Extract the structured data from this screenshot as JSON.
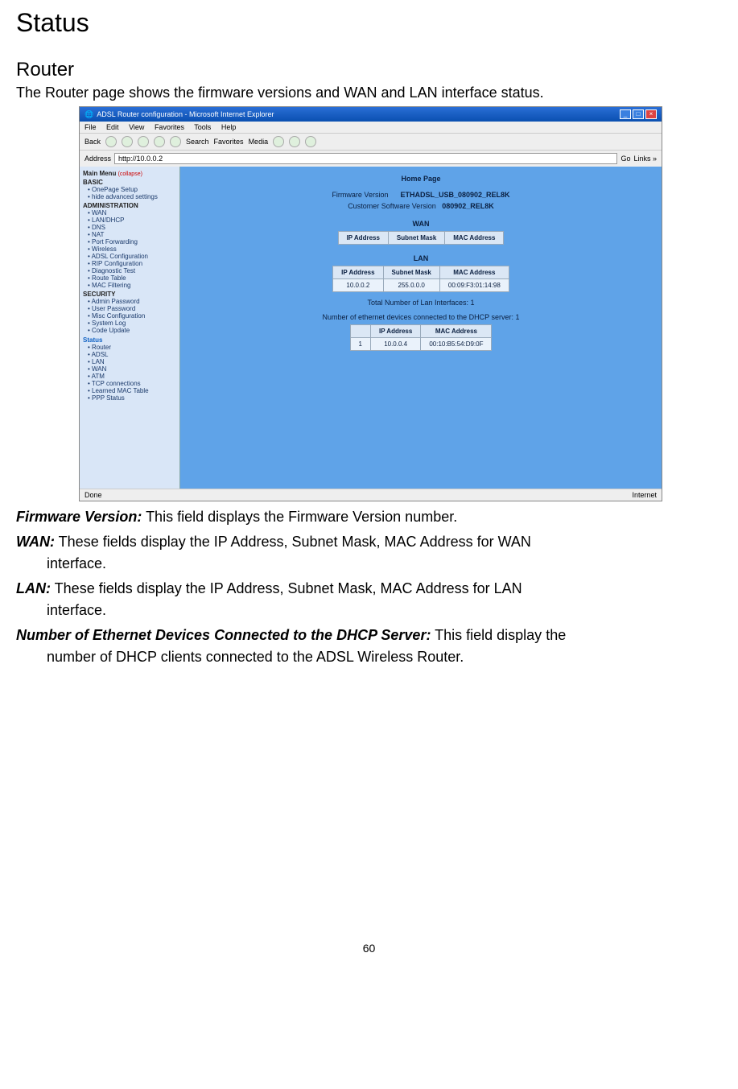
{
  "headings": {
    "status": "Status",
    "router": "Router",
    "intro": "The Router page shows the firmware versions and WAN and LAN interface status."
  },
  "screenshot": {
    "titlebar": "ADSL Router configuration - Microsoft Internet Explorer",
    "menubar": [
      "File",
      "Edit",
      "View",
      "Favorites",
      "Tools",
      "Help"
    ],
    "toolbar": [
      "Back",
      "",
      "",
      "",
      "Search",
      "Favorites",
      "Media",
      "",
      "",
      ""
    ],
    "address_label": "Address",
    "address_value": "http://10.0.0.2",
    "go_label": "Go",
    "links_label": "Links »",
    "sidebar": {
      "menu_title": "Main Menu",
      "collapse": "(collapse)",
      "basic": {
        "heading": "BASIC",
        "items": [
          "OnePage Setup",
          "hide advanced settings"
        ]
      },
      "administration": {
        "heading": "ADMINISTRATION",
        "items": [
          "WAN",
          "LAN/DHCP",
          "DNS",
          "NAT",
          "Port Forwarding",
          "Wireless",
          "ADSL Configuration",
          "RIP Configuration",
          "Diagnostic Test",
          "Route Table",
          "MAC Filtering"
        ]
      },
      "security": {
        "heading": "SECURITY",
        "items": [
          "Admin Password",
          "User Password",
          "Misc Configuration",
          "System Log",
          "Code Update"
        ]
      },
      "status": {
        "heading": "Status",
        "items": [
          "Router",
          "ADSL",
          "LAN",
          "WAN",
          "ATM",
          "TCP connections",
          "Learned MAC Table",
          "PPP Status"
        ]
      }
    },
    "content": {
      "page_title": "Home Page",
      "fw_label": "Firmware Version",
      "fw_value": "ETHADSL_USB_080902_REL8K",
      "cust_label": "Customer Software Version",
      "cust_value": "080902_REL8K",
      "wan_header": "WAN",
      "wan_table": {
        "headers": [
          "IP Address",
          "Subnet Mask",
          "MAC Address"
        ]
      },
      "lan_header": "LAN",
      "lan_table": {
        "headers": [
          "IP Address",
          "Subnet Mask",
          "MAC Address"
        ],
        "row": [
          "10.0.0.2",
          "255.0.0.0",
          "00:09:F3:01:14:98"
        ]
      },
      "total_lan": "Total Number of Lan Interfaces: 1",
      "dhcp_line": "Number of ethernet devices connected to the DHCP server: 1",
      "dhcp_table": {
        "headers": [
          "",
          "IP Address",
          "MAC Address"
        ],
        "row": [
          "1",
          "10.0.0.4",
          "00:10:B5:54:D9:0F"
        ]
      }
    },
    "statusbar": {
      "left": "Done",
      "right": "Internet"
    }
  },
  "descriptions": {
    "firmware": {
      "label": "Firmware Version:",
      "text": " This field displays the Firmware Version number."
    },
    "wan": {
      "label": "WAN:",
      "text": " These fields display the IP Address, Subnet Mask, MAC Address for WAN",
      "sub": "interface."
    },
    "lan": {
      "label": "LAN:",
      "text": " These fields display the IP Address, Subnet Mask, MAC Address for LAN",
      "sub": "interface."
    },
    "dhcp": {
      "label": "Number of Ethernet Devices Connected to the DHCP Server:",
      "text": " This field display the",
      "sub": "number of DHCP clients connected to the ADSL Wireless Router."
    }
  },
  "page_number": "60",
  "colors": {
    "content_bg": "#5fa3e8",
    "sidebar_bg": "#d9e6f7",
    "table_bg": "#eaf2fb",
    "titlebar1": "#2a6fd6",
    "titlebar2": "#0a4fb0"
  }
}
